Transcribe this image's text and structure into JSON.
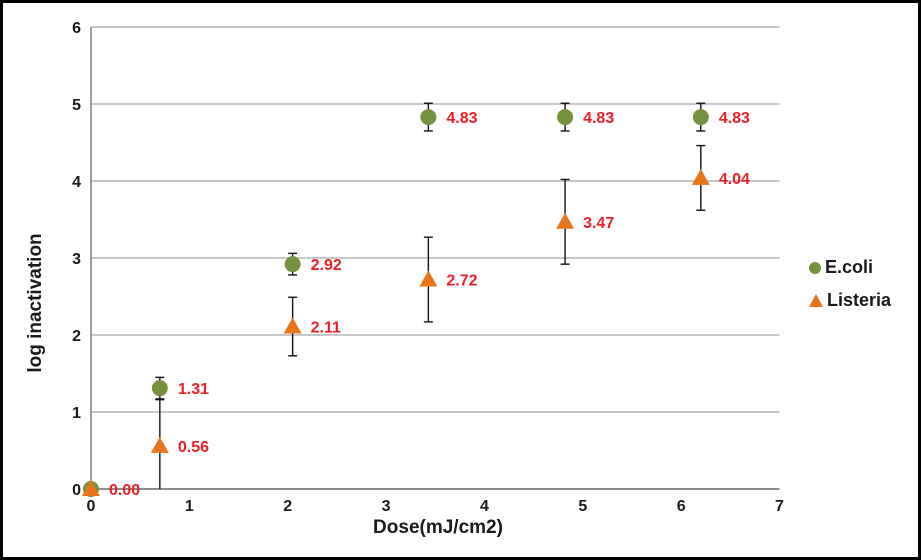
{
  "chart_data": {
    "type": "scatter",
    "title": "",
    "xlabel": "Dose(mJ/cm2)",
    "ylabel": "log inactivation",
    "xlim": [
      0,
      7
    ],
    "ylim": [
      0,
      6
    ],
    "xticks": [
      0,
      1,
      2,
      3,
      4,
      5,
      6,
      7
    ],
    "yticks": [
      0,
      1,
      2,
      3,
      4,
      5,
      6
    ],
    "grid": true,
    "legend_position": "right",
    "x": [
      0,
      0.7,
      2.05,
      3.43,
      4.82,
      6.2
    ],
    "series": [
      {
        "name": "E.coli",
        "marker": "circle",
        "color": "#76923C",
        "values": [
          0.0,
          1.31,
          2.92,
          4.83,
          4.83,
          4.83
        ],
        "errors": [
          0,
          0.14,
          0.14,
          0.18,
          0.18,
          0.18
        ],
        "labels": [
          "0.00",
          "1.31",
          "2.92",
          "4.83",
          "4.83",
          "4.83"
        ]
      },
      {
        "name": "Listeria",
        "marker": "triangle",
        "color": "#E8751A",
        "values": [
          0.0,
          0.56,
          2.11,
          2.72,
          3.47,
          4.04
        ],
        "errors": [
          0,
          0.6,
          0.38,
          0.55,
          0.55,
          0.42
        ],
        "labels": [
          "",
          "0.56",
          "2.11",
          "2.72",
          "3.47",
          "4.04"
        ]
      }
    ],
    "value_label_color": "#EC1F24",
    "gridline_color": "#A6A6A6",
    "axis_color": "#808080",
    "errorbar_color": "#111111",
    "tick_label_color": "#1a1a1a"
  }
}
